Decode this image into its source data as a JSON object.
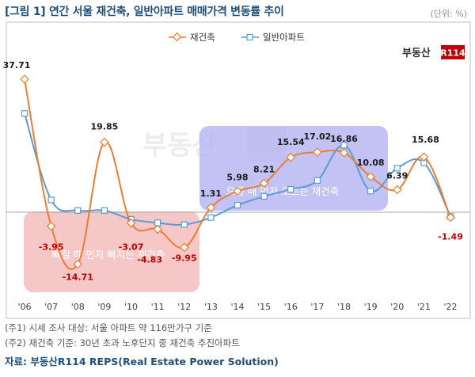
{
  "header": {
    "title": "[그림 1] 연간 서울 재건축, 일반아파트 매매가격 변동률 추이",
    "unit": "(단위: %)"
  },
  "brand": {
    "text": "부동산",
    "badge": "R114"
  },
  "notes": [
    "(주1) 시세 조사 대상: 서울 아파트 약 116만가구 기준",
    "(주2) 재건축 기준: 30년 초과 노후단지 중 재건축 추진아파트"
  ],
  "source": "자료: 부동산R114 REPS(Real Estate Power Solution)",
  "colors": {
    "reconstruction": "#ed7d31",
    "general": "#5b9bd5",
    "positive_label": "#1a1a1a",
    "negative_label": "#c00000",
    "fall_box": "#f2b9b9",
    "rise_box": "#b3b3f2"
  },
  "chart_data": {
    "type": "line",
    "x": [
      "'06",
      "'07",
      "'08",
      "'09",
      "'10",
      "'11",
      "'12",
      "'13",
      "'14",
      "'15",
      "'16",
      "'17",
      "'18",
      "'19",
      "'20",
      "'21",
      "'22"
    ],
    "series": [
      {
        "name": "재건축",
        "values": [
          37.71,
          -3.95,
          -14.71,
          19.85,
          -3.07,
          -4.83,
          -9.95,
          1.31,
          5.98,
          8.21,
          15.54,
          17.02,
          16.86,
          10.08,
          6.39,
          15.68,
          -1.49
        ],
        "labels": [
          "37.71",
          "-3.95",
          "-14.71",
          "19.85",
          "-3.07",
          "-4.83",
          "-9.95",
          "1.31",
          "5.98",
          "8.21",
          "15.54",
          "17.02",
          "16.86",
          "10.08",
          "6.39",
          "15.68",
          "-1.49"
        ]
      },
      {
        "name": "일반아파트",
        "values": [
          28.0,
          3.5,
          0.5,
          0.5,
          -2.0,
          -3.0,
          -3.5,
          -1.5,
          2.0,
          4.5,
          6.5,
          9.0,
          19.0,
          6.0,
          12.5,
          14.0,
          -1.2
        ]
      }
    ],
    "ylim": [
      -20,
      43
    ],
    "grid": false,
    "legend": "top-center",
    "annotations": [
      {
        "text": "빠질 때 먼저 빠지는 재건축",
        "from": 0,
        "to": 7
      },
      {
        "text": "오를 때 먼저 오르는 재건축",
        "from": 7,
        "to": 14
      }
    ]
  }
}
